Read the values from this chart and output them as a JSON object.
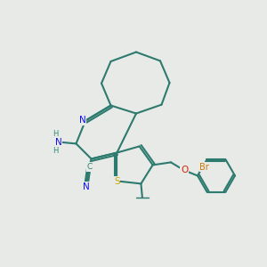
{
  "background_color": "#e8eae8",
  "bond_color": "#2d7a6e",
  "bond_width": 1.5,
  "atom_colors": {
    "N_blue": "#1010ee",
    "N_teal": "#2d8a7a",
    "S": "#c8a800",
    "O": "#dd2200",
    "Br": "#cc7700",
    "C_label": "#2d7a6e"
  },
  "figsize": [
    3.0,
    3.0
  ],
  "dpi": 100,
  "xlim": [
    0,
    10
  ],
  "ylim": [
    0,
    10
  ]
}
